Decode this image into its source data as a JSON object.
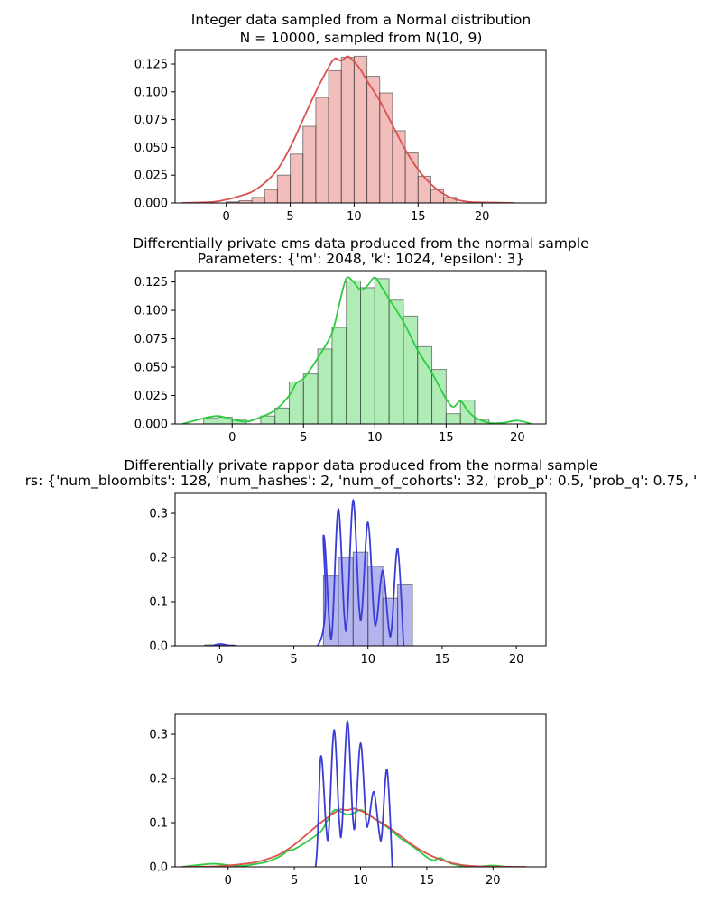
{
  "chart_data": [
    {
      "type": "bar",
      "title": "Integer data sampled from a Normal distribution",
      "subtitle": "N = 10000, sampled from N(10, 9)",
      "xlabel": "",
      "ylabel": "",
      "xlim": [
        -4,
        25
      ],
      "ylim": [
        0,
        0.138
      ],
      "xticks": [
        0,
        5,
        10,
        15,
        20
      ],
      "yticks": [
        0.0,
        0.025,
        0.05,
        0.075,
        0.1,
        0.125
      ],
      "ytick_labels": [
        "0.000",
        "0.025",
        "0.050",
        "0.075",
        "0.100",
        "0.125"
      ],
      "grid": false,
      "color": "#d9534f",
      "bars": {
        "left": [
          0,
          1,
          2,
          3,
          4,
          5,
          6,
          7,
          8,
          9,
          10,
          11,
          12,
          13,
          14,
          15,
          16,
          17
        ],
        "width": 1,
        "values": [
          0.001,
          0.002,
          0.005,
          0.012,
          0.025,
          0.044,
          0.069,
          0.095,
          0.119,
          0.131,
          0.132,
          0.114,
          0.099,
          0.065,
          0.045,
          0.024,
          0.012,
          0.005
        ]
      },
      "kde": {
        "x": [
          -3.5,
          -1,
          0,
          1,
          2,
          3,
          4,
          5,
          6,
          7,
          8,
          8.5,
          9,
          9.5,
          10,
          10.5,
          11,
          12,
          13,
          14,
          15,
          16,
          17,
          18,
          19,
          20,
          22.5
        ],
        "y": [
          0.0,
          0.001,
          0.003,
          0.006,
          0.01,
          0.018,
          0.03,
          0.05,
          0.075,
          0.1,
          0.122,
          0.13,
          0.128,
          0.132,
          0.127,
          0.12,
          0.11,
          0.092,
          0.07,
          0.048,
          0.03,
          0.017,
          0.008,
          0.003,
          0.001,
          0.0005,
          0.0
        ]
      }
    },
    {
      "type": "bar",
      "title": "Differentially private cms data produced from the normal sample",
      "subtitle": "Parameters: {'m': 2048, 'k': 1024, 'epsilon': 3}",
      "xlabel": "",
      "ylabel": "",
      "xlim": [
        -4,
        22
      ],
      "ylim": [
        0,
        0.135
      ],
      "xticks": [
        0,
        5,
        10,
        15,
        20
      ],
      "yticks": [
        0.0,
        0.025,
        0.05,
        0.075,
        0.1,
        0.125
      ],
      "ytick_labels": [
        "0.000",
        "0.025",
        "0.050",
        "0.075",
        "0.100",
        "0.125"
      ],
      "grid": false,
      "color": "#2ecc40",
      "bars": {
        "left": [
          -2,
          -1,
          0,
          2,
          3,
          4,
          5,
          6,
          7,
          8,
          9,
          10,
          11,
          12,
          13,
          14,
          15,
          16,
          17
        ],
        "width": 1,
        "values": [
          0.005,
          0.006,
          0.004,
          0.007,
          0.014,
          0.037,
          0.044,
          0.066,
          0.085,
          0.126,
          0.12,
          0.128,
          0.109,
          0.095,
          0.068,
          0.048,
          0.009,
          0.021,
          0.004
        ]
      },
      "kde": {
        "x": [
          -3.5,
          -2,
          -1,
          0,
          1,
          2,
          3,
          4,
          4.5,
          5,
          6,
          7,
          7.5,
          8,
          8.5,
          9,
          9.5,
          10,
          10.5,
          11,
          12,
          13,
          14,
          15,
          15.5,
          16,
          16.5,
          17,
          18,
          19,
          20,
          21
        ],
        "y": [
          0.0,
          0.005,
          0.007,
          0.004,
          0.002,
          0.006,
          0.012,
          0.025,
          0.036,
          0.04,
          0.058,
          0.08,
          0.105,
          0.128,
          0.125,
          0.118,
          0.122,
          0.129,
          0.12,
          0.11,
          0.09,
          0.065,
          0.045,
          0.022,
          0.015,
          0.02,
          0.012,
          0.006,
          0.001,
          0.001,
          0.003,
          0.0
        ]
      }
    },
    {
      "type": "bar",
      "title": "Differentially private rappor data produced from the normal sample",
      "subtitle": "rs: {'num_bloombits': 128, 'num_hashes': 2, 'num_of_cohorts': 32, 'prob_p': 0.5, 'prob_q': 0.75, '",
      "xlabel": "",
      "ylabel": "",
      "xlim": [
        -3,
        22
      ],
      "ylim": [
        0,
        0.345
      ],
      "xticks": [
        0,
        5,
        10,
        15,
        20
      ],
      "yticks": [
        0.0,
        0.1,
        0.2,
        0.3
      ],
      "ytick_labels": [
        "0.0",
        "0.1",
        "0.2",
        "0.3"
      ],
      "grid": false,
      "color": "#3b3bd6",
      "bars": {
        "left": [
          -1,
          0,
          7,
          8,
          9,
          10,
          11,
          12
        ],
        "width": 1,
        "values": [
          0.002,
          0.002,
          0.158,
          0.2,
          0.212,
          0.18,
          0.108,
          0.138
        ]
      },
      "kde": {
        "x": [
          -0.5,
          0,
          0.5,
          1,
          6.6,
          7,
          7.4,
          7.6,
          8,
          8.4,
          8.6,
          9,
          9.4,
          9.6,
          10,
          10.4,
          10.6,
          11,
          11.4,
          11.6,
          12,
          12.4
        ],
        "y": [
          0.0,
          0.004,
          0.002,
          0.0,
          0.0,
          0.25,
          0.05,
          0.04,
          0.31,
          0.07,
          0.06,
          0.33,
          0.09,
          0.08,
          0.28,
          0.07,
          0.06,
          0.17,
          0.04,
          0.04,
          0.22,
          0.0
        ]
      }
    },
    {
      "type": "line",
      "title": "",
      "subtitle": "",
      "xlabel": "",
      "ylabel": "",
      "xlim": [
        -4,
        24
      ],
      "ylim": [
        0,
        0.345
      ],
      "xticks": [
        0,
        5,
        10,
        15,
        20
      ],
      "yticks": [
        0.0,
        0.1,
        0.2,
        0.3
      ],
      "ytick_labels": [
        "0.0",
        "0.1",
        "0.2",
        "0.3"
      ],
      "grid": false,
      "series": [
        {
          "color": "#2ecc40",
          "x": [
            -3.5,
            -2,
            -1,
            0,
            1,
            2,
            3,
            4,
            4.5,
            5,
            6,
            7,
            7.5,
            8,
            8.5,
            9,
            9.5,
            10,
            10.5,
            11,
            12,
            13,
            14,
            15,
            15.5,
            16,
            16.5,
            17,
            18,
            19,
            20,
            21
          ],
          "y": [
            0.0,
            0.005,
            0.007,
            0.004,
            0.002,
            0.006,
            0.012,
            0.025,
            0.036,
            0.04,
            0.058,
            0.08,
            0.105,
            0.128,
            0.125,
            0.118,
            0.122,
            0.129,
            0.12,
            0.11,
            0.09,
            0.065,
            0.045,
            0.022,
            0.015,
            0.02,
            0.012,
            0.006,
            0.001,
            0.001,
            0.003,
            0.0
          ]
        },
        {
          "color": "#d9534f",
          "x": [
            -3.5,
            -1,
            0,
            1,
            2,
            3,
            4,
            5,
            6,
            7,
            8,
            8.5,
            9,
            9.5,
            10,
            10.5,
            11,
            12,
            13,
            14,
            15,
            16,
            17,
            18,
            19,
            20,
            22.5
          ],
          "y": [
            0.0,
            0.001,
            0.003,
            0.006,
            0.01,
            0.018,
            0.03,
            0.05,
            0.075,
            0.1,
            0.122,
            0.13,
            0.128,
            0.132,
            0.127,
            0.12,
            0.11,
            0.092,
            0.07,
            0.048,
            0.03,
            0.017,
            0.008,
            0.003,
            0.001,
            0.0005,
            0.0
          ]
        },
        {
          "color": "#3b3bd6",
          "x": [
            5.5,
            6.6,
            7,
            7.4,
            7.6,
            8,
            8.4,
            8.6,
            9,
            9.4,
            9.6,
            10,
            10.4,
            10.6,
            11,
            11.4,
            11.6,
            12,
            12.4
          ],
          "y": [
            0.0,
            0.0,
            0.25,
            0.09,
            0.08,
            0.31,
            0.1,
            0.09,
            0.33,
            0.12,
            0.1,
            0.28,
            0.11,
            0.1,
            0.17,
            0.08,
            0.07,
            0.22,
            0.0
          ]
        }
      ]
    }
  ]
}
